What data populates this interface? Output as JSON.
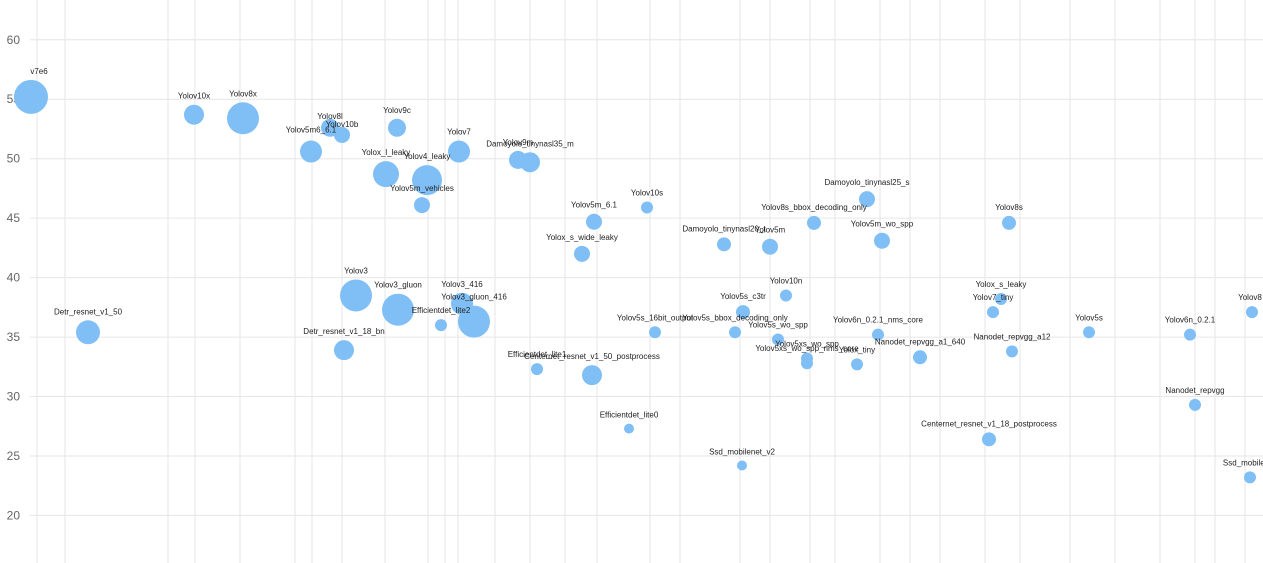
{
  "chart_data": {
    "type": "scatter",
    "ylim": [
      16,
      62
    ],
    "yticks": [
      20,
      25,
      30,
      35,
      40,
      45,
      50,
      55,
      60
    ],
    "grid": true,
    "bubble_color": "#7fbff5",
    "points": [
      {
        "label": "v7e6",
        "y": 55.2,
        "r": 17
      },
      {
        "label": "Yolov10x",
        "y": 53.7,
        "r": 10
      },
      {
        "label": "Yolov8x",
        "y": 53.4,
        "r": 16
      },
      {
        "label": "Yolov8l",
        "y": 52.6,
        "r": 9
      },
      {
        "label": "Yolov10b",
        "y": 52.0,
        "r": 8
      },
      {
        "label": "Yolov9c",
        "y": 52.6,
        "r": 9
      },
      {
        "label": "Yolov5m6_6.1",
        "y": 50.6,
        "r": 11
      },
      {
        "label": "Yolov7",
        "y": 50.6,
        "r": 11
      },
      {
        "label": "Yolov9m",
        "y": 49.9,
        "r": 9
      },
      {
        "label": "Damoyolo_tinynasl35_m",
        "y": 49.7,
        "r": 10
      },
      {
        "label": "Yolox_l_leaky",
        "y": 48.7,
        "r": 13
      },
      {
        "label": "Yolov4_leaky",
        "y": 48.2,
        "r": 15
      },
      {
        "label": "Yolov5m_vehicles",
        "y": 46.1,
        "r": 8
      },
      {
        "label": "Damoyolo_tinynasl25_s",
        "y": 46.6,
        "r": 8
      },
      {
        "label": "Yolov10s",
        "y": 45.9,
        "r": 6
      },
      {
        "label": "Yolov5m_6.1",
        "y": 44.7,
        "r": 8
      },
      {
        "label": "Yolov8s_bbox_decoding_only",
        "y": 44.6,
        "r": 7
      },
      {
        "label": "Yolov8s",
        "y": 44.6,
        "r": 7
      },
      {
        "label": "Yolov5m",
        "y": 42.6,
        "r": 8
      },
      {
        "label": "Damoyolo_tinynasl20_t",
        "y": 42.8,
        "r": 7
      },
      {
        "label": "Yolov5m_wo_spp",
        "y": 43.1,
        "r": 8
      },
      {
        "label": "Yolox_s_wide_leaky",
        "y": 42.0,
        "r": 8
      },
      {
        "label": "Yolov3",
        "y": 38.5,
        "r": 16
      },
      {
        "label": "Yolov10n",
        "y": 38.5,
        "r": 6
      },
      {
        "label": "Yolox_s_leaky",
        "y": 38.2,
        "r": 6
      },
      {
        "label": "Yolov3_416",
        "y": 37.8,
        "r": 11
      },
      {
        "label": "Yolov3_gluon",
        "y": 37.3,
        "r": 16
      },
      {
        "label": "Yolov5s_c3tr",
        "y": 37.1,
        "r": 7
      },
      {
        "label": "Yolov7_tiny",
        "y": 37.1,
        "r": 6
      },
      {
        "label": "Yolov8",
        "y": 37.1,
        "r": 6
      },
      {
        "label": "Yolov3_gluon_416",
        "y": 36.3,
        "r": 16
      },
      {
        "label": "Efficientdet_lite2",
        "y": 36.0,
        "r": 6
      },
      {
        "label": "Detr_resnet_v1_50",
        "y": 35.4,
        "r": 12
      },
      {
        "label": "Yolov5s_16bit_output",
        "y": 35.4,
        "r": 6
      },
      {
        "label": "Yolov5s_bbox_decoding_only",
        "y": 35.4,
        "r": 6
      },
      {
        "label": "Yolov5s",
        "y": 35.4,
        "r": 6
      },
      {
        "label": "Yolov6n_0.2.1",
        "y": 35.2,
        "r": 6
      },
      {
        "label": "Yolov6n_0.2.1_nms_core",
        "y": 35.2,
        "r": 6
      },
      {
        "label": "Yolov5s_wo_spp",
        "y": 34.8,
        "r": 6
      },
      {
        "label": "Detr_resnet_v1_18_bn",
        "y": 33.9,
        "r": 10
      },
      {
        "label": "Nanodet_repvgg_a12",
        "y": 33.8,
        "r": 6
      },
      {
        "label": "Nanodet_repvgg_a1_640",
        "y": 33.3,
        "r": 7
      },
      {
        "label": "Yolov5xs_wo_spp",
        "y": 33.2,
        "r": 6
      },
      {
        "label": "Yolov5xs_wo_spp_nms_core",
        "y": 32.8,
        "r": 6
      },
      {
        "label": "Yolox_tiny",
        "y": 32.7,
        "r": 6
      },
      {
        "label": "Efficientdet_lite1",
        "y": 32.3,
        "r": 6
      },
      {
        "label": "Centernet_resnet_v1_50_postprocess",
        "y": 31.8,
        "r": 10
      },
      {
        "label": "Nanodet_repvgg",
        "y": 29.3,
        "r": 6
      },
      {
        "label": "Efficientdet_lite0",
        "y": 27.3,
        "r": 5
      },
      {
        "label": "Centernet_resnet_v1_18_postprocess",
        "y": 26.4,
        "r": 7
      },
      {
        "label": "Ssd_mobilenet_v2",
        "y": 24.2,
        "r": 5
      },
      {
        "label": "Ssd_mobilen",
        "y": 23.2,
        "r": 6
      }
    ]
  }
}
